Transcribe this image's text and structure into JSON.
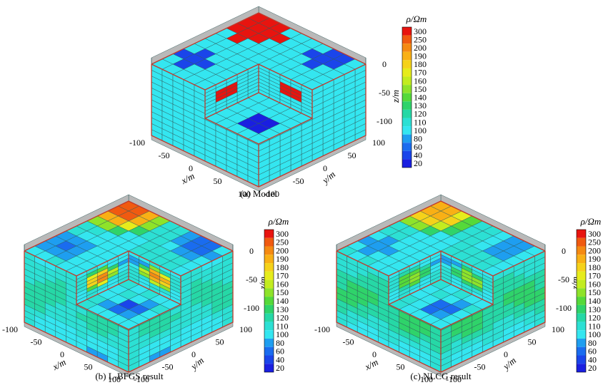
{
  "colors": {
    "background": "#ffffff",
    "panel_wall": "#b9b9b9",
    "panel_wall_dark": "#8a8a8a",
    "grid_line": "#2f5a5a",
    "outline": "#c0392b"
  },
  "chart_data": [
    {
      "type": "heatmap",
      "subtype": "3d-voxel-cutaway",
      "caption": "(a) Model",
      "x_label": "x/m",
      "y_label": "y/m",
      "z_label": "z/m",
      "x_ticks": [
        "-100",
        "-50",
        "0",
        "50",
        "100"
      ],
      "y_ticks": [
        "-100",
        "-50",
        "0",
        "50",
        "100"
      ],
      "z_ticks": [
        "0",
        "-50",
        "-100"
      ],
      "colorbar": {
        "title": "ρ/Ωm",
        "labels": [
          "300",
          "250",
          "200",
          "190",
          "180",
          "170",
          "160",
          "150",
          "140",
          "130",
          "120",
          "110",
          "100",
          "80",
          "60",
          "40",
          "20"
        ]
      },
      "background_resistivity": 100,
      "anomalies": [
        {
          "resistivity": 300
        },
        {
          "resistivity": 300
        },
        {
          "resistivity": 300
        },
        {
          "resistivity": 20
        },
        {
          "resistivity": 20
        },
        {
          "resistivity": 20
        },
        {
          "resistivity": 20
        }
      ]
    },
    {
      "type": "heatmap",
      "subtype": "3d-voxel-cutaway",
      "caption": "(b) L-BFGS result",
      "x_label": "x/m",
      "y_label": "y/m",
      "z_label": "z/m",
      "x_ticks": [
        "-100",
        "-50",
        "0",
        "50",
        "100"
      ],
      "y_ticks": [
        "-100",
        "-50",
        "0",
        "50",
        "100"
      ],
      "z_ticks": [
        "0",
        "-50",
        "-100"
      ],
      "colorbar": {
        "title": "ρ/Ωm",
        "labels": [
          "300",
          "250",
          "200",
          "190",
          "180",
          "170",
          "160",
          "150",
          "140",
          "130",
          "120",
          "110",
          "100",
          "80",
          "60",
          "40",
          "20"
        ]
      },
      "background_resistivity": 100
    },
    {
      "type": "heatmap",
      "subtype": "3d-voxel-cutaway",
      "caption": "(c) NLCG result",
      "x_label": "x/m",
      "y_label": "y/m",
      "z_label": "z/m",
      "x_ticks": [
        "-100",
        "-50",
        "0",
        "50",
        "100"
      ],
      "y_ticks": [
        "-100",
        "-50",
        "0",
        "50",
        "100"
      ],
      "z_ticks": [
        "0",
        "-50",
        "-100"
      ],
      "colorbar": {
        "title": "ρ/Ωm",
        "labels": [
          "300",
          "250",
          "200",
          "190",
          "180",
          "170",
          "160",
          "150",
          "140",
          "130",
          "120",
          "110",
          "100",
          "80",
          "60",
          "40",
          "20"
        ]
      },
      "background_resistivity": 100
    }
  ],
  "colorscale": [
    "#e8140f",
    "#f05a10",
    "#f58a12",
    "#f9b015",
    "#f5d21a",
    "#e6ec1c",
    "#c2ec20",
    "#8ee32a",
    "#55d93a",
    "#2fd36a",
    "#26d8a6",
    "#2ce0d4",
    "#34e6f0",
    "#1e9ef0",
    "#1a6cef",
    "#1a45ea",
    "#1a1fe0"
  ]
}
